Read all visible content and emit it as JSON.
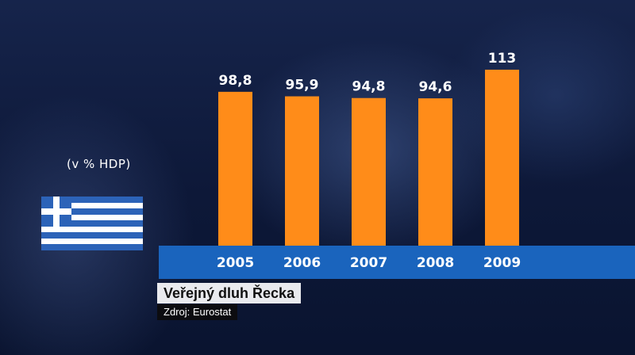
{
  "chart_data": {
    "type": "bar",
    "categories": [
      "2005",
      "2006",
      "2007",
      "2008",
      "2009"
    ],
    "values": [
      98.8,
      95.9,
      94.8,
      94.6,
      113
    ],
    "value_labels": [
      "98,8",
      "95,9",
      "94,8",
      "94,6",
      "113"
    ],
    "title": "Veřejný dluh Řecka",
    "ylabel": "(v % HDP)",
    "ylim": [
      0,
      130
    ],
    "source": "Zdroj: Eurostat",
    "grid": false,
    "colors": {
      "bar": "#ff8c19",
      "axis_band": "#1a64bd",
      "flag_blue": "#2c63b8",
      "label": "#ffffff"
    }
  },
  "flag": {
    "icon": "greek-flag-icon"
  }
}
